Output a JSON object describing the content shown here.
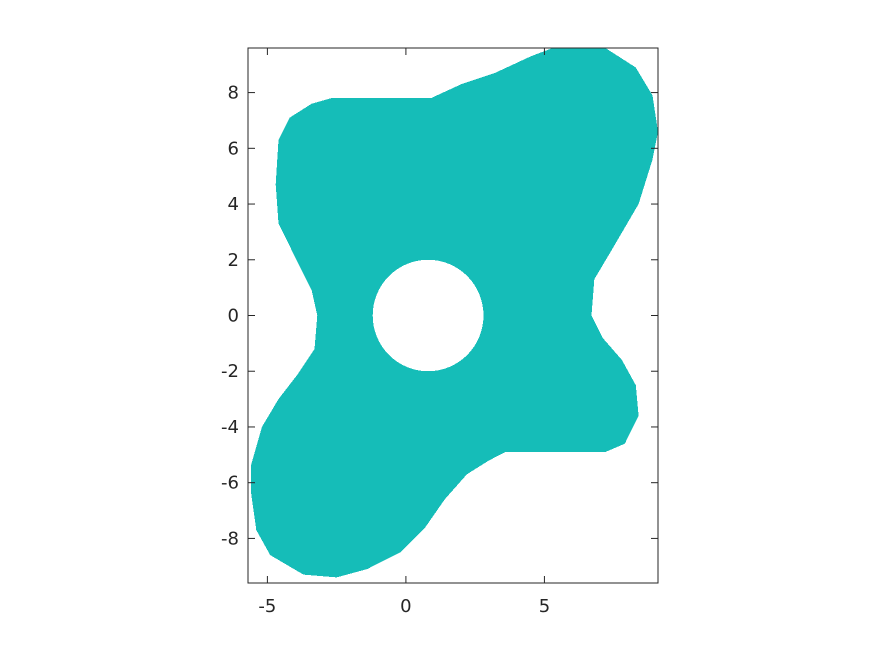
{
  "chart_data": {
    "type": "heatmap",
    "title": "",
    "xlabel": "",
    "ylabel": "",
    "xlim": [
      -5.7,
      9.1
    ],
    "ylim": [
      -9.6,
      9.6
    ],
    "x_ticks": [
      -5,
      0,
      5
    ],
    "y_ticks": [
      -8,
      -6,
      -4,
      -2,
      0,
      2,
      4,
      6,
      8
    ],
    "grid": false,
    "legend": "none",
    "fill_color": "#15bdb8",
    "frame_color": "#262626",
    "background_color": "#ffffff",
    "region": {
      "description_values": "filled region in data units; outer boundary with an inner circular hole",
      "outer_boundary": [
        [
          -2.7,
          7.8
        ],
        [
          0.9,
          7.8
        ],
        [
          2.0,
          8.3
        ],
        [
          3.2,
          8.7
        ],
        [
          4.5,
          9.3
        ],
        [
          5.3,
          9.6
        ],
        [
          7.2,
          9.6
        ],
        [
          8.3,
          8.9
        ],
        [
          8.9,
          7.9
        ],
        [
          9.1,
          6.6
        ],
        [
          8.9,
          5.6
        ],
        [
          8.4,
          4.0
        ],
        [
          7.4,
          2.3
        ],
        [
          6.8,
          1.3
        ],
        [
          6.7,
          0.0
        ],
        [
          7.1,
          -0.8
        ],
        [
          7.8,
          -1.6
        ],
        [
          8.3,
          -2.5
        ],
        [
          8.4,
          -3.6
        ],
        [
          7.9,
          -4.6
        ],
        [
          7.2,
          -4.9
        ],
        [
          5.9,
          -4.9
        ],
        [
          3.6,
          -4.9
        ],
        [
          3.0,
          -5.2
        ],
        [
          2.2,
          -5.7
        ],
        [
          1.4,
          -6.6
        ],
        [
          0.7,
          -7.6
        ],
        [
          -0.2,
          -8.5
        ],
        [
          -1.4,
          -9.1
        ],
        [
          -2.5,
          -9.4
        ],
        [
          -3.7,
          -9.3
        ],
        [
          -4.9,
          -8.6
        ],
        [
          -5.4,
          -7.7
        ],
        [
          -5.6,
          -6.3
        ],
        [
          -5.6,
          -5.4
        ],
        [
          -5.2,
          -4.0
        ],
        [
          -4.6,
          -3.0
        ],
        [
          -3.9,
          -2.1
        ],
        [
          -3.3,
          -1.2
        ],
        [
          -3.2,
          0.0
        ],
        [
          -3.4,
          0.9
        ],
        [
          -4.0,
          2.1
        ],
        [
          -4.6,
          3.3
        ],
        [
          -4.7,
          4.7
        ],
        [
          -4.6,
          6.3
        ],
        [
          -4.2,
          7.1
        ],
        [
          -3.4,
          7.6
        ]
      ],
      "hole": {
        "center": [
          0.8,
          0.0
        ],
        "radius": 2.0
      }
    }
  }
}
